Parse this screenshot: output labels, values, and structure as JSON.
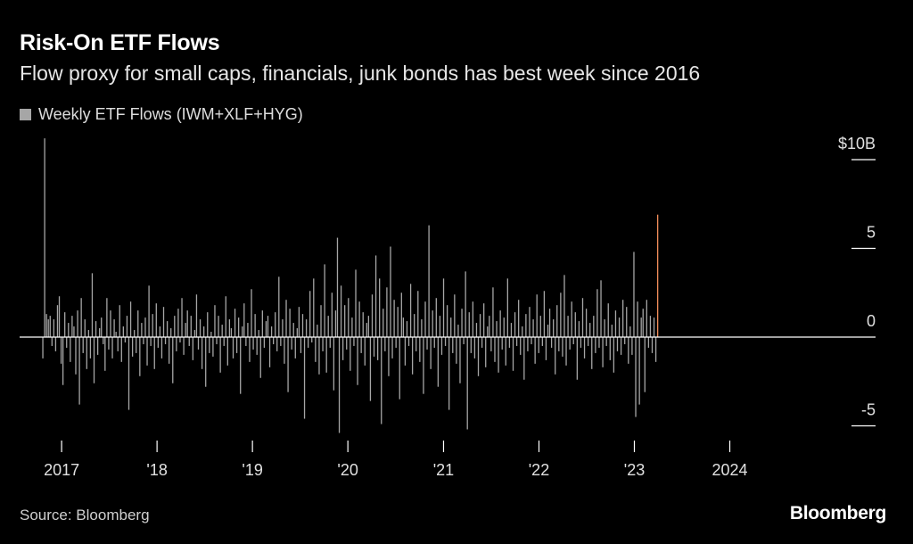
{
  "header": {
    "title": "Risk-On ETF Flows",
    "subtitle": "Flow proxy for small caps, financials, junk bonds has best week since 2016"
  },
  "legend": {
    "label": "Weekly ETF Flows (IWM+XLF+HYG)"
  },
  "footer": {
    "source": "Source: Bloomberg",
    "brand": "Bloomberg"
  },
  "colors": {
    "background": "#000000",
    "bars": "#a6a6a6",
    "highlight": "#f08c5a",
    "zero_line": "#ffffff"
  },
  "chart_data": {
    "type": "bar",
    "units": "$B",
    "ylim": [
      -5,
      10
    ],
    "yticks": [
      {
        "value": 10,
        "label": "$10B"
      },
      {
        "value": 5,
        "label": "5"
      },
      {
        "value": 0,
        "label": "0"
      },
      {
        "value": -5,
        "label": "-5"
      }
    ],
    "xticks": [
      "2017",
      "'18",
      "'19",
      "'20",
      "'21",
      "'22",
      "'23",
      "2024"
    ],
    "x_range": [
      "2016-10-21",
      "2024-11-08"
    ],
    "grid": false,
    "legend_position": "top-left",
    "highlight_last": true,
    "series": [
      {
        "name": "Weekly ETF Flows (IWM+XLF+HYG)",
        "weekly_start": "2016-10-21",
        "values": [
          -1.2,
          11.2,
          1.3,
          1.0,
          1.2,
          -0.5,
          1.0,
          -0.8,
          1.8,
          2.3,
          -1.5,
          -2.7,
          1.4,
          -0.6,
          0.8,
          -1.4,
          1.2,
          0.6,
          -2.1,
          1.5,
          -3.8,
          2.2,
          -0.9,
          1.0,
          -1.8,
          0.4,
          -1.2,
          3.6,
          -2.6,
          0.9,
          -1.0,
          0.5,
          1.1,
          -0.4,
          -1.9,
          2.2,
          -0.7,
          1.5,
          -1.2,
          1.0,
          0.3,
          -0.8,
          1.8,
          -1.4,
          0.6,
          -0.3,
          1.2,
          -4.1,
          2.0,
          -1.1,
          0.4,
          -0.9,
          1.5,
          -2.2,
          0.8,
          -0.4,
          1.1,
          -1.6,
          2.9,
          -0.5,
          1.3,
          -1.8,
          1.9,
          -0.6,
          0.6,
          -1.2,
          1.7,
          -0.4,
          0.9,
          -1.5,
          0.5,
          -2.6,
          1.2,
          -0.8,
          1.6,
          -0.3,
          2.2,
          -1.0,
          0.8,
          1.5,
          -0.5,
          1.2,
          -1.3,
          0.4,
          2.4,
          -0.7,
          1.0,
          -1.8,
          0.6,
          -2.8,
          1.4,
          -0.9,
          0.3,
          -1.1,
          1.8,
          -0.4,
          1.2,
          -2.0,
          0.7,
          -0.5,
          2.3,
          -1.6,
          1.0,
          0.5,
          -1.2,
          1.6,
          -0.9,
          1.1,
          -3.2,
          0.6,
          1.9,
          -0.5,
          0.8,
          -1.4,
          2.7,
          -0.7,
          1.3,
          -1.0,
          0.4,
          -2.3,
          1.5,
          -0.6,
          0.9,
          1.2,
          -1.7,
          0.6,
          -0.4,
          1.4,
          -0.8,
          3.4,
          -0.5,
          1.0,
          -1.5,
          2.1,
          -3.1,
          1.6,
          -0.7,
          0.8,
          -1.2,
          0.5,
          1.7,
          -0.9,
          1.3,
          -4.6,
          1.0,
          -0.6,
          2.6,
          -0.3,
          3.3,
          -1.4,
          0.7,
          -2.1,
          1.8,
          -0.8,
          4.1,
          -2.0,
          1.2,
          -0.6,
          2.5,
          -3.0,
          1.5,
          5.6,
          -5.4,
          2.9,
          -1.3,
          1.8,
          -0.7,
          2.2,
          -1.9,
          1.1,
          -0.5,
          3.8,
          -2.7,
          2.0,
          -0.9,
          1.4,
          -1.6,
          0.8,
          1.2,
          -3.6,
          2.4,
          -1.1,
          4.6,
          -1.3,
          3.3,
          -4.9,
          1.6,
          -0.8,
          2.8,
          -2.2,
          5.1,
          -1.2,
          2.1,
          -0.6,
          1.7,
          -3.5,
          2.5,
          1.1,
          -1.6,
          0.9,
          -0.5,
          3.0,
          -2.1,
          1.3,
          -0.8,
          2.6,
          -1.4,
          1.0,
          -3.2,
          2.0,
          -0.7,
          6.3,
          -1.8,
          1.5,
          -0.6,
          2.2,
          -2.8,
          1.2,
          -1.0,
          3.3,
          -0.5,
          1.8,
          -4.1,
          1.1,
          -0.9,
          2.4,
          -1.5,
          0.7,
          -2.6,
          1.6,
          -0.4,
          3.7,
          -5.2,
          1.4,
          -0.9,
          2.0,
          -1.2,
          0.8,
          -2.2,
          1.3,
          -0.6,
          1.9,
          -1.7,
          0.6,
          1.2,
          -0.8,
          2.8,
          -1.4,
          0.9,
          -2.0,
          1.5,
          -0.7,
          1.1,
          -1.6,
          3.3,
          -0.6,
          0.8,
          -1.9,
          1.4,
          -0.5,
          2.1,
          -1.0,
          0.6,
          -2.4,
          1.3,
          -0.8,
          1.7,
          -0.4,
          1.0,
          -1.5,
          2.4,
          -0.9,
          1.2,
          -0.5,
          2.6,
          -1.3,
          0.7,
          1.6,
          -0.6,
          1.0,
          -2.1,
          1.8,
          -0.8,
          2.5,
          -1.1,
          3.5,
          -1.6,
          1.2,
          -0.7,
          2.0,
          -0.4,
          1.4,
          -2.4,
          0.9,
          -0.6,
          2.2,
          -1.2,
          1.6,
          -0.5,
          0.8,
          -1.8,
          1.2,
          -0.9,
          2.7,
          -0.6,
          3.2,
          -1.7,
          1.0,
          -0.5,
          1.9,
          -1.3,
          0.7,
          -2.0,
          1.5,
          -0.8,
          1.1,
          -1.0,
          2.1,
          -0.4,
          1.7,
          -1.5,
          0.6,
          -1.0,
          4.8,
          -4.5,
          2.0,
          -3.8,
          1.1,
          1.6,
          -3.1,
          2.1,
          -0.6,
          1.2,
          -0.9,
          1.1,
          -1.4,
          6.9
        ]
      }
    ]
  }
}
